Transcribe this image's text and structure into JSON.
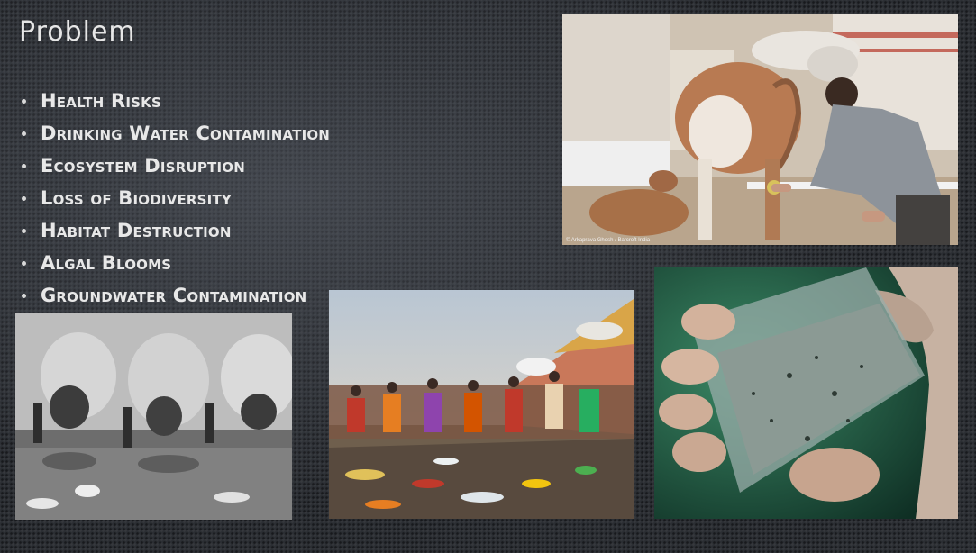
{
  "slide": {
    "title": "Problem",
    "bullets": [
      "Health Risks",
      "Drinking Water Contamination",
      "Ecosystem Disruption",
      "Loss of Biodiversity",
      "Habitat Destruction",
      "Algal Blooms",
      "Groundwater Contamination"
    ]
  },
  "photos": {
    "cows": {
      "caption": "© Arkaprava Ghosh / Barcroft India"
    }
  },
  "colors": {
    "background": "#2b2e33",
    "text": "#e8e8e8"
  }
}
